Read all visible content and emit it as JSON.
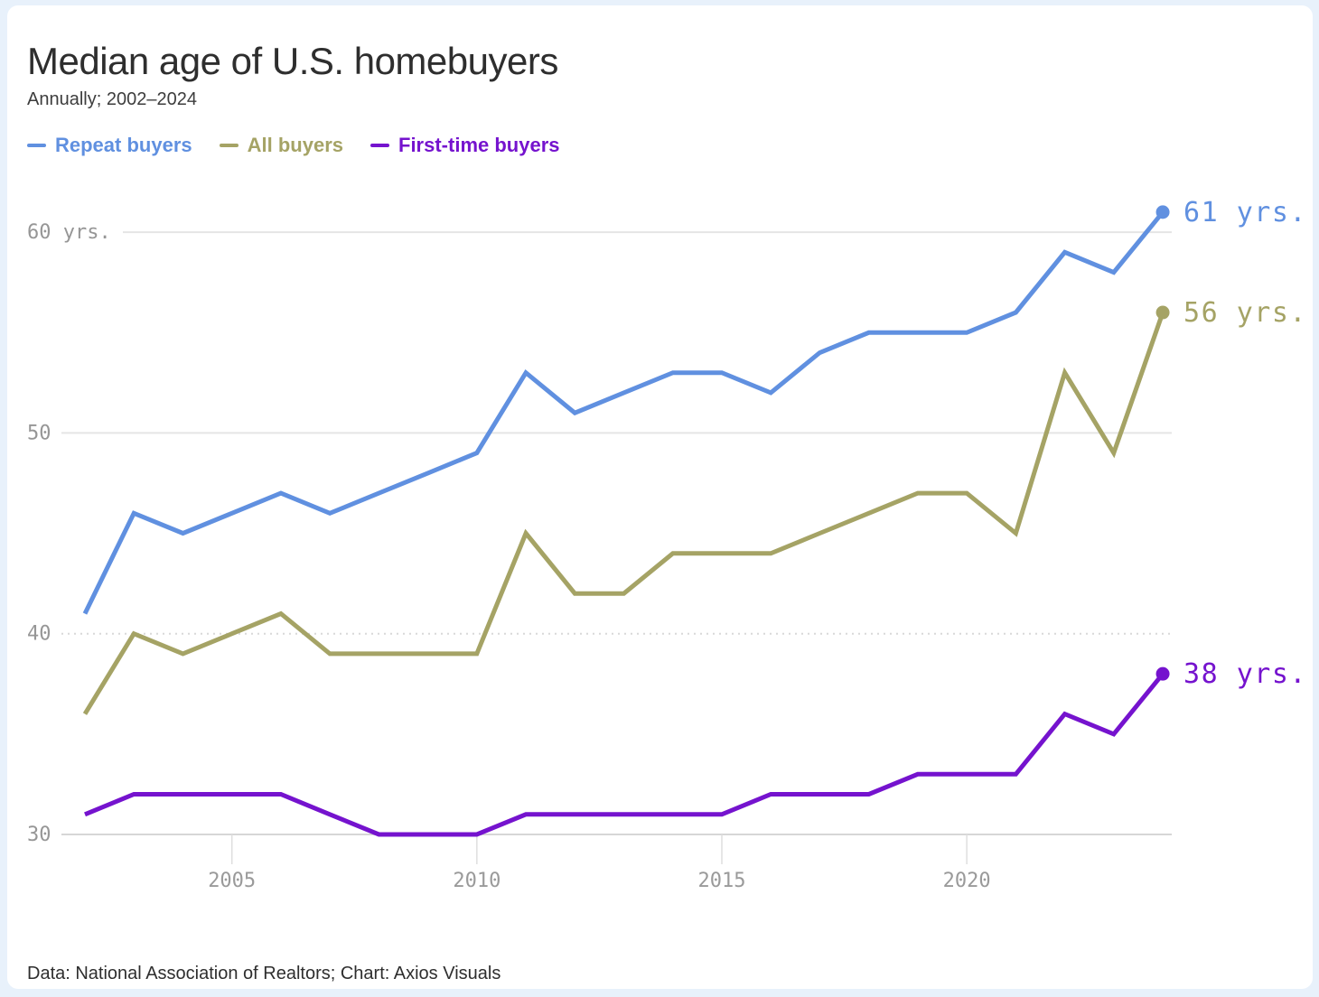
{
  "footer": {
    "credit": "Data: National Association of Realtors; Chart: Axios Visuals"
  },
  "chart_data": {
    "type": "line",
    "title": "Median age of U.S. homebuyers",
    "subtitle": "Annually; 2002–2024",
    "x": [
      2002,
      2003,
      2004,
      2005,
      2006,
      2007,
      2008,
      2009,
      2010,
      2011,
      2012,
      2013,
      2014,
      2015,
      2016,
      2017,
      2018,
      2019,
      2020,
      2021,
      2022,
      2023,
      2024
    ],
    "series": [
      {
        "name": "Repeat buyers",
        "color": "#6090e0",
        "values": [
          41,
          46,
          45,
          46,
          47,
          46,
          47,
          48,
          49,
          53,
          51,
          52,
          53,
          53,
          52,
          54,
          55,
          55,
          55,
          56,
          59,
          58,
          61
        ],
        "end_label": "61 yrs."
      },
      {
        "name": "All buyers",
        "color": "#a5a365",
        "values": [
          36,
          40,
          39,
          40,
          41,
          39,
          39,
          39,
          39,
          45,
          42,
          42,
          44,
          44,
          44,
          45,
          46,
          47,
          47,
          45,
          53,
          49,
          56
        ],
        "end_label": "56 yrs."
      },
      {
        "name": "First-time buyers",
        "color": "#7513ce",
        "values": [
          31,
          32,
          32,
          32,
          32,
          31,
          30,
          30,
          30,
          31,
          31,
          31,
          31,
          31,
          32,
          32,
          32,
          33,
          33,
          33,
          36,
          35,
          38
        ],
        "end_label": "38 yrs."
      }
    ],
    "y_ticks": [
      {
        "value": 60,
        "label": "60 yrs.",
        "style": "solid"
      },
      {
        "value": 50,
        "label": "50",
        "style": "solid"
      },
      {
        "value": 40,
        "label": "40",
        "style": "dotted"
      },
      {
        "value": 30,
        "label": "30",
        "style": "solid"
      }
    ],
    "x_ticks": [
      "2005",
      "2010",
      "2015",
      "2020"
    ],
    "ylim": [
      29,
      63
    ],
    "xlim": [
      2002,
      2024
    ],
    "grid": "horizontal",
    "legend_position": "top-left"
  }
}
